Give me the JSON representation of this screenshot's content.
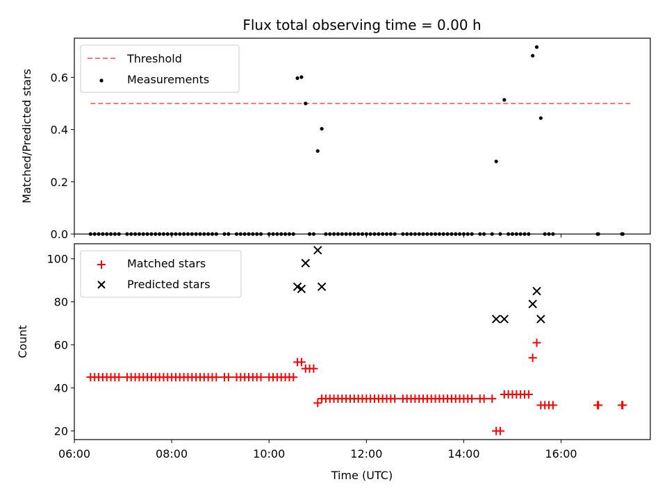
{
  "chart_data": [
    {
      "type": "scatter",
      "title": "Flux total observing time = 0.00 h",
      "xlabel": "",
      "ylabel": "Matched/Predicted stars",
      "xlim": [
        "06:00",
        "17:50"
      ],
      "ylim": [
        0,
        0.75
      ],
      "yticks": [
        0.0,
        0.2,
        0.4,
        0.6
      ],
      "legend_position": "top-left",
      "threshold": {
        "name": "Threshold",
        "value": 0.5,
        "x_range": [
          "06:20",
          "17:25"
        ],
        "color": "#ff7777",
        "style": "dashed"
      },
      "series": [
        {
          "name": "Measurements",
          "color": "#000000",
          "marker": "dot",
          "points": [
            [
              "06:20",
              0
            ],
            [
              "06:25",
              0
            ],
            [
              "06:30",
              0
            ],
            [
              "06:35",
              0
            ],
            [
              "06:40",
              0
            ],
            [
              "06:45",
              0
            ],
            [
              "06:50",
              0
            ],
            [
              "06:55",
              0
            ],
            [
              "07:05",
              0
            ],
            [
              "07:10",
              0
            ],
            [
              "07:15",
              0
            ],
            [
              "07:20",
              0
            ],
            [
              "07:25",
              0
            ],
            [
              "07:30",
              0
            ],
            [
              "07:35",
              0
            ],
            [
              "07:40",
              0
            ],
            [
              "07:45",
              0
            ],
            [
              "07:50",
              0
            ],
            [
              "07:55",
              0
            ],
            [
              "08:00",
              0
            ],
            [
              "08:05",
              0
            ],
            [
              "08:10",
              0
            ],
            [
              "08:15",
              0
            ],
            [
              "08:20",
              0
            ],
            [
              "08:25",
              0
            ],
            [
              "08:30",
              0
            ],
            [
              "08:35",
              0
            ],
            [
              "08:40",
              0
            ],
            [
              "08:45",
              0
            ],
            [
              "08:50",
              0
            ],
            [
              "08:55",
              0
            ],
            [
              "09:05",
              0
            ],
            [
              "09:10",
              0
            ],
            [
              "09:20",
              0
            ],
            [
              "09:25",
              0
            ],
            [
              "09:30",
              0
            ],
            [
              "09:35",
              0
            ],
            [
              "09:40",
              0
            ],
            [
              "09:45",
              0
            ],
            [
              "09:50",
              0
            ],
            [
              "10:00",
              0
            ],
            [
              "10:05",
              0
            ],
            [
              "10:10",
              0
            ],
            [
              "10:15",
              0
            ],
            [
              "10:20",
              0
            ],
            [
              "10:25",
              0
            ],
            [
              "10:30",
              0
            ],
            [
              "10:35",
              0.597
            ],
            [
              "10:40",
              0.601
            ],
            [
              "10:45",
              0.5
            ],
            [
              "10:50",
              0
            ],
            [
              "10:55",
              0
            ],
            [
              "11:00",
              0.318
            ],
            [
              "11:05",
              0.403
            ],
            [
              "11:10",
              0
            ],
            [
              "11:15",
              0
            ],
            [
              "11:20",
              0
            ],
            [
              "11:25",
              0
            ],
            [
              "11:30",
              0
            ],
            [
              "11:35",
              0
            ],
            [
              "11:40",
              0
            ],
            [
              "11:45",
              0
            ],
            [
              "11:50",
              0
            ],
            [
              "11:55",
              0
            ],
            [
              "12:00",
              0
            ],
            [
              "12:05",
              0
            ],
            [
              "12:10",
              0
            ],
            [
              "12:15",
              0
            ],
            [
              "12:20",
              0
            ],
            [
              "12:25",
              0
            ],
            [
              "12:30",
              0
            ],
            [
              "12:35",
              0
            ],
            [
              "12:45",
              0
            ],
            [
              "12:50",
              0
            ],
            [
              "12:55",
              0
            ],
            [
              "13:00",
              0
            ],
            [
              "13:05",
              0
            ],
            [
              "13:10",
              0
            ],
            [
              "13:15",
              0
            ],
            [
              "13:20",
              0
            ],
            [
              "13:25",
              0
            ],
            [
              "13:30",
              0
            ],
            [
              "13:35",
              0
            ],
            [
              "13:40",
              0
            ],
            [
              "13:45",
              0
            ],
            [
              "13:50",
              0
            ],
            [
              "13:55",
              0
            ],
            [
              "14:00",
              0
            ],
            [
              "14:05",
              0
            ],
            [
              "14:10",
              0
            ],
            [
              "14:20",
              0
            ],
            [
              "14:25",
              0
            ],
            [
              "14:35",
              0
            ],
            [
              "14:40",
              0.278
            ],
            [
              "14:45",
              0
            ],
            [
              "14:50",
              0.514
            ],
            [
              "14:55",
              0
            ],
            [
              "15:00",
              0
            ],
            [
              "15:05",
              0
            ],
            [
              "15:10",
              0
            ],
            [
              "15:15",
              0
            ],
            [
              "15:20",
              0
            ],
            [
              "15:25",
              0.683
            ],
            [
              "15:30",
              0.716
            ],
            [
              "15:35",
              0.444
            ],
            [
              "15:40",
              0
            ],
            [
              "15:45",
              0
            ],
            [
              "15:50",
              0
            ],
            [
              "16:45",
              0
            ],
            [
              "16:46",
              0
            ],
            [
              "17:15",
              0
            ],
            [
              "17:16",
              0
            ]
          ]
        }
      ]
    },
    {
      "type": "scatter",
      "title": "",
      "xlabel": "Time (UTC)",
      "ylabel": "Count",
      "xlim": [
        "06:00",
        "17:50"
      ],
      "ylim": [
        16,
        107
      ],
      "xticks": [
        "06:00",
        "08:00",
        "10:00",
        "12:00",
        "14:00",
        "16:00"
      ],
      "yticks": [
        20,
        40,
        60,
        80,
        100
      ],
      "legend_position": "top-left",
      "series": [
        {
          "name": "Matched stars",
          "color": "#ff0000",
          "marker": "plus",
          "points": [
            [
              "06:20",
              45
            ],
            [
              "06:25",
              45
            ],
            [
              "06:30",
              45
            ],
            [
              "06:35",
              45
            ],
            [
              "06:40",
              45
            ],
            [
              "06:45",
              45
            ],
            [
              "06:50",
              45
            ],
            [
              "06:55",
              45
            ],
            [
              "07:05",
              45
            ],
            [
              "07:10",
              45
            ],
            [
              "07:15",
              45
            ],
            [
              "07:20",
              45
            ],
            [
              "07:25",
              45
            ],
            [
              "07:30",
              45
            ],
            [
              "07:35",
              45
            ],
            [
              "07:40",
              45
            ],
            [
              "07:45",
              45
            ],
            [
              "07:50",
              45
            ],
            [
              "07:55",
              45
            ],
            [
              "08:00",
              45
            ],
            [
              "08:05",
              45
            ],
            [
              "08:10",
              45
            ],
            [
              "08:15",
              45
            ],
            [
              "08:20",
              45
            ],
            [
              "08:25",
              45
            ],
            [
              "08:30",
              45
            ],
            [
              "08:35",
              45
            ],
            [
              "08:40",
              45
            ],
            [
              "08:45",
              45
            ],
            [
              "08:50",
              45
            ],
            [
              "08:55",
              45
            ],
            [
              "09:05",
              45
            ],
            [
              "09:10",
              45
            ],
            [
              "09:20",
              45
            ],
            [
              "09:25",
              45
            ],
            [
              "09:30",
              45
            ],
            [
              "09:35",
              45
            ],
            [
              "09:40",
              45
            ],
            [
              "09:45",
              45
            ],
            [
              "09:50",
              45
            ],
            [
              "10:00",
              45
            ],
            [
              "10:05",
              45
            ],
            [
              "10:10",
              45
            ],
            [
              "10:15",
              45
            ],
            [
              "10:20",
              45
            ],
            [
              "10:25",
              45
            ],
            [
              "10:30",
              45
            ],
            [
              "10:35",
              52
            ],
            [
              "10:40",
              52
            ],
            [
              "10:45",
              49
            ],
            [
              "10:50",
              49
            ],
            [
              "10:55",
              49
            ],
            [
              "11:00",
              33
            ],
            [
              "11:05",
              35
            ],
            [
              "11:10",
              35
            ],
            [
              "11:15",
              35
            ],
            [
              "11:20",
              35
            ],
            [
              "11:25",
              35
            ],
            [
              "11:30",
              35
            ],
            [
              "11:35",
              35
            ],
            [
              "11:40",
              35
            ],
            [
              "11:45",
              35
            ],
            [
              "11:50",
              35
            ],
            [
              "11:55",
              35
            ],
            [
              "12:00",
              35
            ],
            [
              "12:05",
              35
            ],
            [
              "12:10",
              35
            ],
            [
              "12:15",
              35
            ],
            [
              "12:20",
              35
            ],
            [
              "12:25",
              35
            ],
            [
              "12:30",
              35
            ],
            [
              "12:35",
              35
            ],
            [
              "12:45",
              35
            ],
            [
              "12:50",
              35
            ],
            [
              "12:55",
              35
            ],
            [
              "13:00",
              35
            ],
            [
              "13:05",
              35
            ],
            [
              "13:10",
              35
            ],
            [
              "13:15",
              35
            ],
            [
              "13:20",
              35
            ],
            [
              "13:25",
              35
            ],
            [
              "13:30",
              35
            ],
            [
              "13:35",
              35
            ],
            [
              "13:40",
              35
            ],
            [
              "13:45",
              35
            ],
            [
              "13:50",
              35
            ],
            [
              "13:55",
              35
            ],
            [
              "14:00",
              35
            ],
            [
              "14:05",
              35
            ],
            [
              "14:10",
              35
            ],
            [
              "14:20",
              35
            ],
            [
              "14:25",
              35
            ],
            [
              "14:35",
              35
            ],
            [
              "14:40",
              20
            ],
            [
              "14:45",
              20
            ],
            [
              "14:50",
              37
            ],
            [
              "14:55",
              37
            ],
            [
              "15:00",
              37
            ],
            [
              "15:05",
              37
            ],
            [
              "15:10",
              37
            ],
            [
              "15:15",
              37
            ],
            [
              "15:20",
              37
            ],
            [
              "15:25",
              54
            ],
            [
              "15:30",
              61
            ],
            [
              "15:35",
              32
            ],
            [
              "15:40",
              32
            ],
            [
              "15:45",
              32
            ],
            [
              "15:50",
              32
            ],
            [
              "16:45",
              32
            ],
            [
              "16:46",
              32
            ],
            [
              "17:15",
              32
            ],
            [
              "17:16",
              32
            ]
          ]
        },
        {
          "name": "Predicted stars",
          "color": "#000000",
          "marker": "x",
          "points": [
            [
              "10:35",
              87
            ],
            [
              "10:40",
              86
            ],
            [
              "10:45",
              98
            ],
            [
              "11:00",
              104
            ],
            [
              "11:05",
              87
            ],
            [
              "14:40",
              72
            ],
            [
              "14:50",
              72
            ],
            [
              "15:25",
              79
            ],
            [
              "15:30",
              85
            ],
            [
              "15:35",
              72
            ]
          ]
        }
      ]
    }
  ]
}
